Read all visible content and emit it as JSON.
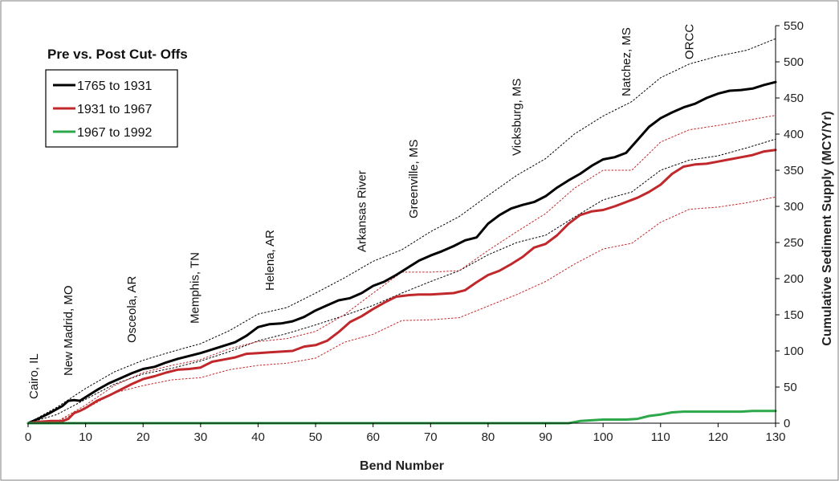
{
  "chart_data": {
    "type": "line",
    "title": "Pre vs. Post Cut- Offs",
    "xlabel": "Bend Number",
    "ylabel": "Cumulative Sediment Supply (MCY/Yr)",
    "xlim": [
      0,
      130
    ],
    "ylim": [
      0,
      550
    ],
    "xticks": [
      0,
      10,
      20,
      30,
      40,
      50,
      60,
      70,
      80,
      90,
      100,
      110,
      120,
      130
    ],
    "yticks": [
      0,
      50,
      100,
      150,
      200,
      250,
      300,
      350,
      400,
      450,
      500,
      550
    ],
    "y_axis_side": "right",
    "grid": false,
    "legend_position": "top-left",
    "colors": {
      "black": "#000000",
      "red": "#c0282b",
      "green": "#2ca84a"
    },
    "series": [
      {
        "name": "1765 to 1931",
        "color": "#000000",
        "x": [
          0,
          2,
          4,
          6,
          7,
          8,
          9,
          10,
          12,
          14,
          16,
          18,
          20,
          22,
          24,
          26,
          28,
          30,
          32,
          34,
          36,
          38,
          40,
          42,
          44,
          46,
          48,
          50,
          52,
          54,
          56,
          58,
          60,
          62,
          64,
          66,
          68,
          70,
          72,
          74,
          76,
          78,
          80,
          82,
          84,
          86,
          88,
          90,
          92,
          94,
          96,
          98,
          100,
          102,
          104,
          106,
          108,
          110,
          112,
          114,
          116,
          118,
          120,
          122,
          124,
          126,
          128,
          130
        ],
        "y": [
          0,
          7,
          15,
          24,
          31,
          32,
          31,
          36,
          46,
          55,
          62,
          69,
          75,
          78,
          84,
          89,
          93,
          97,
          102,
          107,
          112,
          121,
          133,
          137,
          138,
          141,
          147,
          156,
          163,
          170,
          173,
          180,
          190,
          196,
          205,
          215,
          225,
          232,
          238,
          245,
          253,
          257,
          276,
          288,
          297,
          302,
          306,
          314,
          326,
          336,
          345,
          356,
          365,
          368,
          374,
          392,
          410,
          422,
          430,
          437,
          442,
          450,
          456,
          460,
          461,
          463,
          468,
          472
        ]
      },
      {
        "name": "1931 to 1967",
        "color": "#c0282b",
        "x": [
          0,
          2,
          4,
          6,
          7,
          8,
          9,
          10,
          12,
          14,
          16,
          18,
          20,
          22,
          24,
          26,
          28,
          30,
          32,
          34,
          36,
          38,
          40,
          42,
          44,
          46,
          48,
          50,
          52,
          54,
          56,
          58,
          60,
          62,
          64,
          66,
          68,
          70,
          72,
          74,
          76,
          78,
          80,
          82,
          84,
          86,
          88,
          90,
          92,
          94,
          96,
          98,
          100,
          102,
          104,
          106,
          108,
          110,
          112,
          114,
          116,
          118,
          120,
          122,
          124,
          126,
          128,
          130
        ],
        "y": [
          0,
          2,
          3,
          3,
          6,
          14,
          17,
          21,
          31,
          38,
          46,
          54,
          61,
          65,
          70,
          74,
          75,
          77,
          85,
          88,
          91,
          96,
          97,
          98,
          99,
          100,
          106,
          108,
          114,
          126,
          140,
          148,
          158,
          167,
          175,
          177,
          178,
          178,
          179,
          180,
          184,
          195,
          205,
          211,
          220,
          230,
          243,
          248,
          260,
          276,
          288,
          293,
          295,
          300,
          306,
          312,
          320,
          330,
          345,
          355,
          358,
          359,
          362,
          365,
          368,
          371,
          376,
          378
        ]
      },
      {
        "name": "1967 to 1992",
        "color": "#2ca84a",
        "x": [
          0,
          10,
          20,
          30,
          40,
          50,
          60,
          70,
          80,
          90,
          94,
          96,
          98,
          100,
          102,
          104,
          106,
          108,
          110,
          112,
          114,
          116,
          118,
          120,
          122,
          124,
          126,
          128,
          130
        ],
        "y": [
          0,
          0,
          0,
          0,
          0,
          0,
          0,
          0,
          0,
          0,
          0,
          3,
          4,
          5,
          5,
          5,
          6,
          10,
          12,
          15,
          16,
          16,
          16,
          16,
          16,
          16,
          17,
          17,
          17
        ]
      }
    ],
    "envelopes": [
      {
        "of": "1765 to 1931",
        "bound": "upper",
        "color": "#000000",
        "x": [
          0,
          5,
          10,
          15,
          20,
          25,
          30,
          35,
          40,
          45,
          50,
          55,
          60,
          65,
          70,
          75,
          80,
          85,
          90,
          95,
          100,
          105,
          110,
          115,
          120,
          125,
          130
        ],
        "y": [
          0,
          22,
          48,
          71,
          87,
          99,
          110,
          128,
          151,
          160,
          180,
          201,
          224,
          240,
          265,
          286,
          315,
          343,
          366,
          400,
          425,
          445,
          478,
          497,
          508,
          516,
          532
        ]
      },
      {
        "of": "1765 to 1931",
        "bound": "lower",
        "color": "#000000",
        "x": [
          0,
          5,
          10,
          15,
          20,
          25,
          30,
          35,
          40,
          45,
          50,
          55,
          60,
          65,
          70,
          75,
          80,
          85,
          90,
          95,
          100,
          105,
          110,
          115,
          120,
          125,
          130
        ],
        "y": [
          0,
          12,
          33,
          54,
          68,
          76,
          86,
          99,
          114,
          124,
          136,
          149,
          163,
          180,
          196,
          211,
          233,
          250,
          260,
          285,
          309,
          320,
          350,
          364,
          370,
          381,
          393
        ]
      },
      {
        "of": "1931 to 1967",
        "bound": "upper",
        "color": "#c0282b",
        "x": [
          0,
          5,
          10,
          15,
          20,
          25,
          30,
          35,
          40,
          45,
          50,
          55,
          60,
          65,
          70,
          75,
          80,
          85,
          90,
          95,
          100,
          105,
          110,
          115,
          120,
          125,
          130
        ],
        "y": [
          0,
          2,
          25,
          52,
          70,
          80,
          88,
          103,
          113,
          117,
          127,
          150,
          180,
          209,
          209,
          211,
          239,
          265,
          290,
          325,
          350,
          350,
          389,
          406,
          412,
          419,
          426
        ]
      },
      {
        "of": "1931 to 1967",
        "bound": "lower",
        "color": "#c0282b",
        "x": [
          0,
          5,
          10,
          15,
          20,
          25,
          30,
          35,
          40,
          45,
          50,
          55,
          60,
          65,
          70,
          75,
          80,
          85,
          90,
          95,
          100,
          105,
          110,
          115,
          120,
          125,
          130
        ],
        "y": [
          0,
          2,
          20,
          42,
          52,
          60,
          63,
          74,
          80,
          83,
          90,
          112,
          123,
          142,
          143,
          146,
          162,
          178,
          196,
          220,
          241,
          249,
          278,
          296,
          299,
          305,
          313
        ]
      }
    ],
    "annotations": [
      {
        "label": "Cairo, IL",
        "x": 1
      },
      {
        "label": "New Madrid, MO",
        "x": 7
      },
      {
        "label": "Osceola, AR",
        "x": 18
      },
      {
        "label": "Memphis, TN",
        "x": 29
      },
      {
        "label": "Helena, AR",
        "x": 42
      },
      {
        "label": "Arkansas River",
        "x": 58
      },
      {
        "label": "Greenville, MS",
        "x": 67
      },
      {
        "label": "Vicksburg, MS",
        "x": 85
      },
      {
        "label": "Natchez, MS",
        "x": 104
      },
      {
        "label": "ORCC",
        "x": 115
      }
    ]
  }
}
